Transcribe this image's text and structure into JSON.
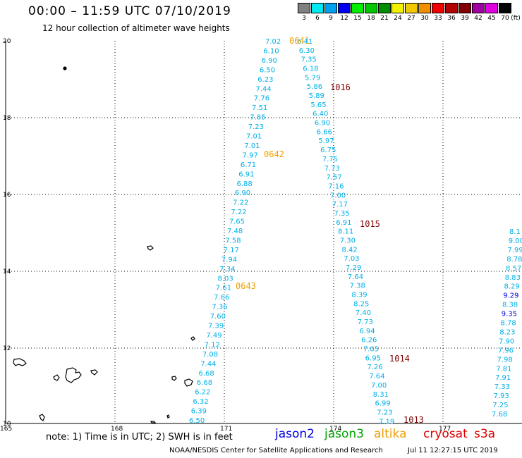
{
  "header": {
    "title": "00:00 – 11:59 UTC 07/10/2019",
    "subtitle": "12 hour collection of altimeter wave heights"
  },
  "colorbar": {
    "unit": "(ft)",
    "bins": [
      {
        "label": "3",
        "color": "#808080"
      },
      {
        "label": "6",
        "color": "#00e8f0"
      },
      {
        "label": "9",
        "color": "#00a0f0"
      },
      {
        "label": "12",
        "color": "#0000f0"
      },
      {
        "label": "15",
        "color": "#00f000"
      },
      {
        "label": "18",
        "color": "#00c800"
      },
      {
        "label": "21",
        "color": "#008c00"
      },
      {
        "label": "24",
        "color": "#f0f000"
      },
      {
        "label": "27",
        "color": "#f0c800"
      },
      {
        "label": "30",
        "color": "#f09000"
      },
      {
        "label": "33",
        "color": "#f00000"
      },
      {
        "label": "36",
        "color": "#b40000"
      },
      {
        "label": "39",
        "color": "#800000"
      },
      {
        "label": "42",
        "color": "#a000a0"
      },
      {
        "label": "45",
        "color": "#e000e0"
      },
      {
        "label": "70",
        "color": "#000000"
      }
    ]
  },
  "map": {
    "x_ticks": [
      "165",
      "168",
      "171",
      "174",
      "177"
    ],
    "y_ticks": [
      "20",
      "18",
      "16",
      "14",
      "12",
      "10"
    ]
  },
  "tracks": [
    {
      "satellite": "altika",
      "color": "#00b0e8",
      "values": [
        "7.02",
        "6.10",
        "6.90",
        "6.50",
        "6.23",
        "7.44",
        "7.76",
        "7.51",
        "7.85",
        "7.23",
        "7.01",
        "7.01",
        "7.97",
        "6.71",
        "6.91",
        "6.88",
        "6.90",
        "7.22",
        "7.22",
        "7.65",
        "7.48",
        "7.58",
        "7.17",
        "7.94",
        "7.34",
        "8.03",
        "7.61",
        "7.66",
        "7.36",
        "7.60",
        "7.39",
        "7.49",
        "7.12",
        "7.08",
        "7.44",
        "6.68",
        "6.68",
        "6.22",
        "6.32",
        "6.39",
        "6.50"
      ],
      "time_labels": [
        {
          "text": "0641",
          "color": "#f0a000"
        },
        {
          "text": "0642",
          "color": "#f0a000"
        },
        {
          "text": "0643",
          "color": "#f0a000"
        }
      ]
    },
    {
      "satellite": "cryosat",
      "color": "#00b0e8",
      "values": [
        "6.41",
        "6.30",
        "7.35",
        "6.18",
        "5.79",
        "5.86",
        "5.89",
        "5.65",
        "6.40",
        "6.90",
        "6.66",
        "5.97",
        "6.75",
        "7.75",
        "7.73",
        "7.57",
        "7.16",
        "7.00",
        "7.17",
        "7.35",
        "6.91",
        "8.11",
        "7.30",
        "8.42",
        "7.03",
        "7.29",
        "7.64",
        "7.38",
        "8.39",
        "8.25",
        "7.40",
        "7.73",
        "6.94",
        "6.26",
        "7.05",
        "6.95",
        "7.26",
        "7.64",
        "7.00",
        "8.31",
        "6.99",
        "7.23",
        "7.19"
      ],
      "time_labels": [
        {
          "text": "1016",
          "color": "#800000"
        },
        {
          "text": "1015",
          "color": "#800000"
        },
        {
          "text": "1014",
          "color": "#800000"
        },
        {
          "text": "1013",
          "color": "#800000"
        }
      ]
    },
    {
      "satellite": "s3a",
      "color": "#00b0e8",
      "values": [
        "8.1",
        "9.00",
        "7.99",
        "8.78",
        "8.57",
        "8.83",
        "8.29",
        "9.29",
        "8.38",
        "9.35",
        "8.78",
        "8.23",
        "7.90",
        "7.96",
        "7.98",
        "7.81",
        "7.91",
        "7.33",
        "7.93",
        "7.25",
        "7.68"
      ],
      "blue_indices": [
        7,
        9
      ]
    }
  ],
  "footer": {
    "note": "note: 1) Time is in UTC; 2) SWH is in feet",
    "satellites": [
      {
        "name": "jason2",
        "color": "#0000e0"
      },
      {
        "name": "jason3",
        "color": "#00a000"
      },
      {
        "name": "altika",
        "color": "#f0a000"
      },
      {
        "name": "cryosat",
        "color": "#e00000"
      },
      {
        "name": "s3a",
        "color": "#e00000"
      }
    ],
    "credit": "NOAA/NESDIS Center for Satellite Applications and Research",
    "timestamp": "Jul 11 12:27:15 UTC 2019"
  }
}
